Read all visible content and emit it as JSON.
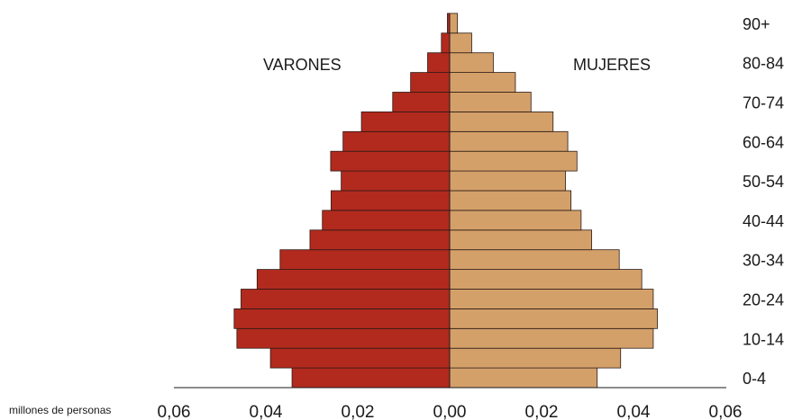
{
  "chart_data": {
    "type": "bar",
    "orientation": "horizontal-population-pyramid",
    "unit_label": "millones de personas",
    "left_label": "VARONES",
    "right_label": "MUJERES",
    "xlim": [
      -0.06,
      0.06
    ],
    "x_tick_values": [
      -0.06,
      -0.04,
      -0.02,
      0.0,
      0.02,
      0.04,
      0.06
    ],
    "x_tick_labels": [
      "0,06",
      "0,04",
      "0,02",
      "0,00",
      "0,02",
      "0,04",
      "0,06"
    ],
    "categories": [
      "0-4",
      "5-9",
      "10-14",
      "15-19",
      "20-24",
      "25-29",
      "30-34",
      "35-39",
      "40-44",
      "45-49",
      "50-54",
      "55-59",
      "60-64",
      "65-69",
      "70-74",
      "75-79",
      "80-84",
      "85-89",
      "90+"
    ],
    "visible_category_labels": [
      "0-4",
      "10-14",
      "20-24",
      "30-34",
      "40-44",
      "50-54",
      "60-64",
      "70-74",
      "80-84",
      "90+"
    ],
    "series": [
      {
        "name": "VARONES",
        "color": "#b22a1e",
        "values": [
          0.0343,
          0.039,
          0.0463,
          0.0469,
          0.0454,
          0.0419,
          0.0369,
          0.0304,
          0.0277,
          0.0258,
          0.0236,
          0.0259,
          0.0232,
          0.0192,
          0.0124,
          0.0085,
          0.0048,
          0.0018,
          0.0005
        ]
      },
      {
        "name": "MUJERES",
        "color": "#d4a06a",
        "values": [
          0.0321,
          0.0372,
          0.0443,
          0.0452,
          0.0443,
          0.0418,
          0.0369,
          0.0309,
          0.0286,
          0.0264,
          0.0252,
          0.0277,
          0.0257,
          0.0225,
          0.0177,
          0.0143,
          0.0095,
          0.0048,
          0.0017
        ]
      }
    ],
    "grid": false,
    "legend": "none"
  }
}
